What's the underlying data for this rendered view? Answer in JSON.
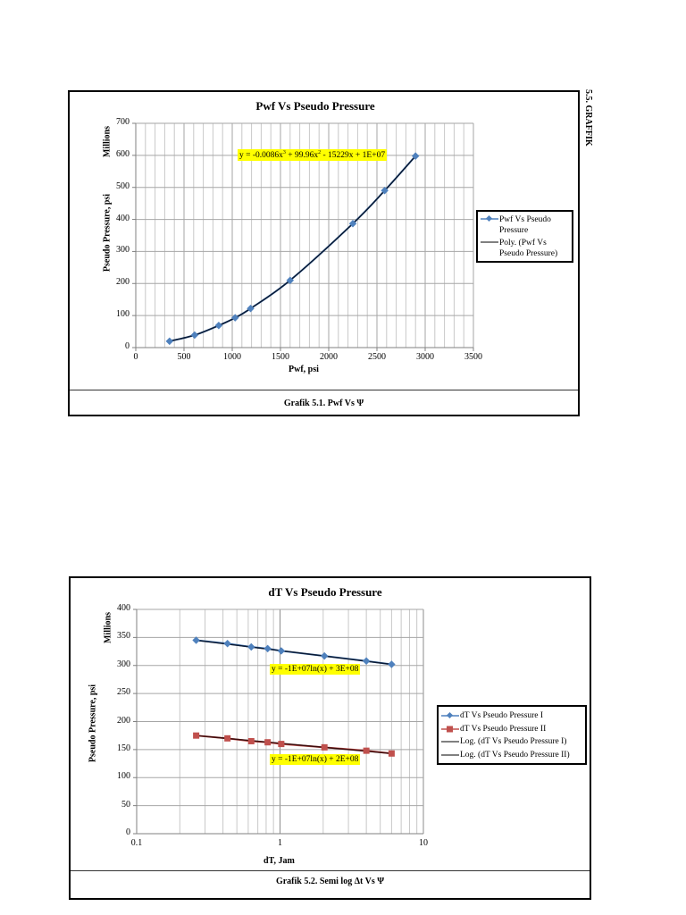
{
  "section_label": "5.5. GRAFFIK",
  "charts": [
    {
      "title": "Pwf Vs Pseudo Pressure",
      "caption": "Grafik 5.1.  Pwf Vs Ψ",
      "xlabel": "Pwf, psi",
      "ylabel": "Pseudo Pressure, psi",
      "yunit": "Millions",
      "xticks": [
        "0",
        "500",
        "1000",
        "1500",
        "2000",
        "2500",
        "3000",
        "3500"
      ],
      "yticks": [
        "0",
        "100",
        "200",
        "300",
        "400",
        "500",
        "600",
        "700"
      ],
      "equation": "y = -0.0086x³ + 99.96x² - 15229x + 1E+07",
      "legend": [
        "Pwf Vs Pseudo Pressure",
        "Poly. (Pwf Vs Pseudo Pressure)"
      ]
    },
    {
      "title": "dT Vs Pseudo Pressure",
      "caption": "Grafik 5.2.  Semi log Δt Vs Ψ",
      "xlabel": "dT, Jam",
      "ylabel": "Pseudo Pressure, psi",
      "yunit": "Millions",
      "xticks": [
        "0.1",
        "1",
        "10"
      ],
      "yticks": [
        "0",
        "50",
        "100",
        "150",
        "200",
        "250",
        "300",
        "350",
        "400"
      ],
      "equation_1": "y = -1E+07ln(x) + 3E+08",
      "equation_2": "y = -1E+07ln(x) + 2E+08",
      "legend": [
        "dT Vs Pseudo Pressure I",
        "dT Vs Pseudo Pressure II",
        "Log. (dT Vs Pseudo Pressure I)",
        "Log. (dT Vs Pseudo Pressure II)"
      ]
    }
  ],
  "chart_data": [
    {
      "type": "scatter",
      "title": "Pwf Vs Pseudo Pressure",
      "xlabel": "Pwf, psi",
      "ylabel": "Pseudo Pressure, psi (Millions)",
      "xlim": [
        0,
        3500
      ],
      "ylim": [
        0,
        700
      ],
      "grid": true,
      "legend_position": "right",
      "series": [
        {
          "name": "Pwf Vs Pseudo Pressure",
          "color": "#4f81bd",
          "marker": "diamond",
          "x": [
            350,
            610,
            860,
            1030,
            1190,
            1600,
            2250,
            2580,
            2900
          ],
          "y": [
            20,
            39,
            69,
            93,
            122,
            210,
            387,
            490,
            598
          ]
        }
      ],
      "trendline": {
        "name": "Poly. (Pwf Vs Pseudo Pressure)",
        "type": "polynomial",
        "order": 3,
        "equation": "y = -0.0086x^3 + 99.96x^2 - 15229x + 1E+07",
        "color": "#000000"
      }
    },
    {
      "type": "line",
      "title": "dT Vs Pseudo Pressure",
      "xlabel": "dT, Jam",
      "ylabel": "Pseudo Pressure, psi (Millions)",
      "xscale": "log",
      "xlim": [
        0.1,
        10
      ],
      "ylim": [
        0,
        400
      ],
      "grid": true,
      "legend_position": "right",
      "x": [
        0.26,
        0.43,
        0.63,
        0.82,
        1.02,
        2.04,
        4.0,
        6.0
      ],
      "series": [
        {
          "name": "dT Vs Pseudo Pressure I",
          "color": "#4f81bd",
          "marker": "diamond",
          "values": [
            345,
            339,
            333,
            330,
            326,
            317,
            308,
            302
          ]
        },
        {
          "name": "dT Vs Pseudo Pressure II",
          "color": "#c0504d",
          "marker": "square",
          "values": [
            175,
            170,
            165,
            163,
            160,
            154,
            148,
            143
          ]
        }
      ],
      "trendlines": [
        {
          "name": "Log. (dT Vs Pseudo Pressure I)",
          "type": "log",
          "equation": "y = -1E+07ln(x) + 3E+08",
          "color": "#000000"
        },
        {
          "name": "Log. (dT Vs Pseudo Pressure II)",
          "type": "log",
          "equation": "y = -1E+07ln(x) + 2E+08",
          "color": "#000000"
        }
      ]
    }
  ]
}
